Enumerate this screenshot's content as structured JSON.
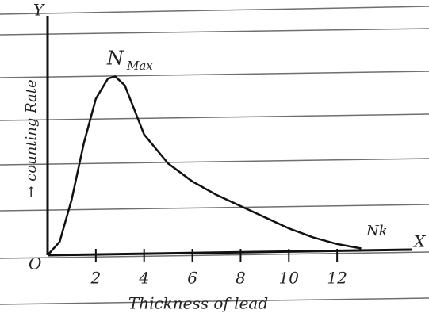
{
  "chart_data": {
    "type": "line",
    "y_label": "→ counting Rate",
    "x_label": "Thickness of lead",
    "y_axis_letter": "Y",
    "x_axis_letter": "X",
    "origin_label": "O",
    "peak_label": "N",
    "peak_sub": "Max",
    "end_label": "Nk",
    "x": [
      0,
      0.5,
      1,
      1.5,
      2,
      2.5,
      2.8,
      3.2,
      4,
      5,
      6,
      7,
      8,
      9,
      10,
      11,
      12,
      13
    ],
    "values": [
      0,
      0.6,
      2.5,
      5,
      7,
      7.9,
      8.0,
      7.6,
      5.4,
      4.1,
      3.3,
      2.7,
      2.2,
      1.7,
      1.2,
      0.8,
      0.5,
      0.3
    ],
    "color": "#111111",
    "xlim": [
      0,
      14
    ],
    "ylim": [
      0,
      10
    ],
    "xticks": [
      2,
      4,
      6,
      8,
      10,
      12
    ]
  }
}
